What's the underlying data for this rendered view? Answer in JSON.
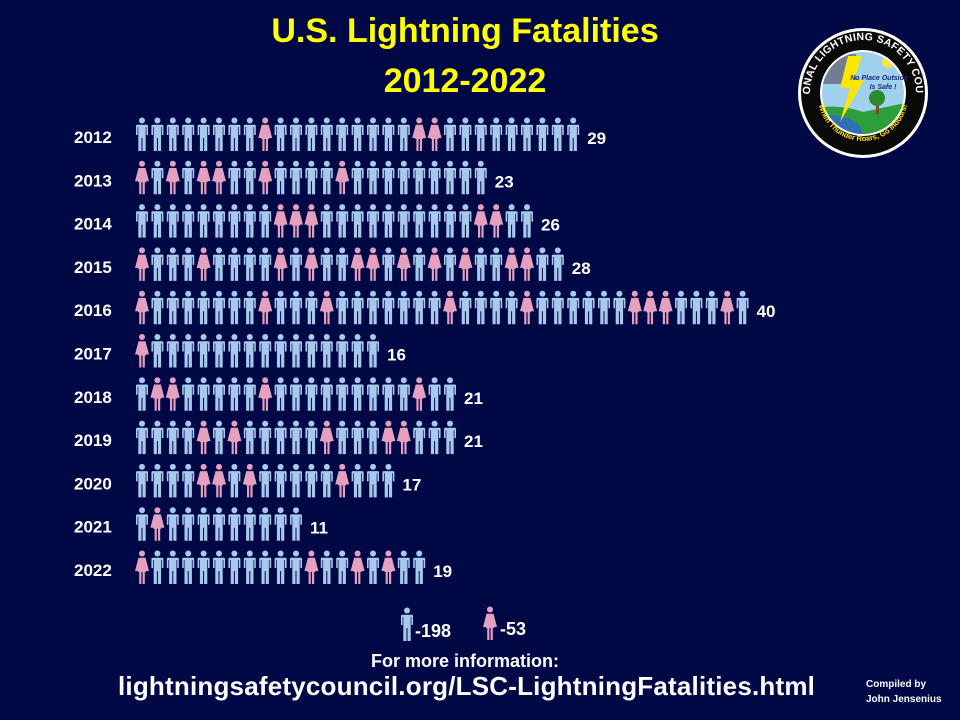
{
  "title_line1": "U.S. Lightning Fatalities",
  "title_line2": "2012-2022",
  "logo": {
    "ring_text": "NATIONAL LIGHTNING SAFETY COUNCIL",
    "bottom_text": "When Thunder Roars, Go Indoors!",
    "inner_line1": "No Place Outside",
    "inner_line2": "Is Safe !"
  },
  "footer": {
    "more_info": "For more information:",
    "url": "lightningsafetycouncil.org/LSC-LightningFatalities.html",
    "credit_line1": "Compiled by",
    "credit_line2": "John Jensenius"
  },
  "colors": {
    "background": "#000845",
    "male": "#a8c8ee",
    "female": "#e5a0c0",
    "title": "#ffff00"
  },
  "legend": {
    "male_label": "-198",
    "female_label": "-53"
  },
  "chart_data": {
    "type": "bar",
    "categories": [
      "2012",
      "2013",
      "2014",
      "2015",
      "2016",
      "2017",
      "2018",
      "2019",
      "2020",
      "2021",
      "2022"
    ],
    "values": [
      29,
      23,
      26,
      28,
      40,
      16,
      21,
      21,
      17,
      11,
      19
    ],
    "female_positions": [
      [
        8,
        18,
        19
      ],
      [
        0,
        2,
        4,
        5,
        8,
        13
      ],
      [
        9,
        10,
        11,
        22,
        23
      ],
      [
        0,
        4,
        9,
        11,
        14,
        15,
        17,
        19,
        21,
        24,
        25
      ],
      [
        0,
        8,
        12,
        20,
        25,
        32,
        33,
        34,
        38
      ],
      [
        0
      ],
      [
        1,
        2,
        8,
        18
      ],
      [
        4,
        6,
        12,
        16,
        17
      ],
      [
        4,
        5,
        7,
        13
      ],
      [
        1
      ],
      [
        0,
        11,
        14,
        16
      ]
    ]
  }
}
